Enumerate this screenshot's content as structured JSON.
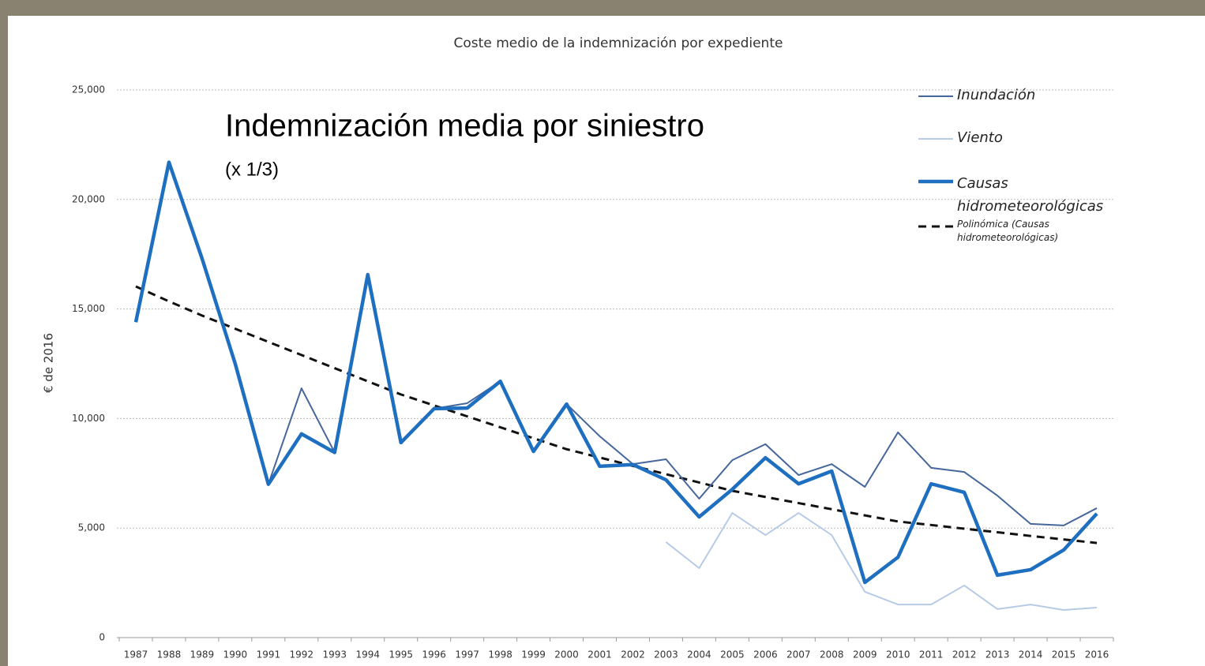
{
  "chart_data": {
    "type": "line",
    "title": "Coste medio de la indemnización por expediente",
    "annotation": "Indemnización media por siniestro",
    "annotation_note": "(x 1/3)",
    "y_label": "€ de 2016",
    "categories": [
      "1987",
      "1988",
      "1989",
      "1990",
      "1991",
      "1992",
      "1993",
      "1994",
      "1995",
      "1996",
      "1997",
      "1998",
      "1999",
      "2000",
      "2001",
      "2002",
      "2003",
      "2004",
      "2005",
      "2006",
      "2007",
      "2008",
      "2009",
      "2010",
      "2011",
      "2012",
      "2013",
      "2014",
      "2015",
      "2016"
    ],
    "series": [
      {
        "name": "Inundación",
        "color": "#45679b",
        "width": 2,
        "dash": false,
        "values": [
          14400,
          21700,
          17300,
          12500,
          7000,
          11380,
          8450,
          16570,
          8900,
          10450,
          10700,
          11700,
          8500,
          10660,
          9190,
          7920,
          8140,
          6340,
          8100,
          8830,
          7420,
          7920,
          6880,
          9370,
          7750,
          7560,
          6480,
          5190,
          5120,
          5910
        ]
      },
      {
        "name": "Viento",
        "color": "#b7cbe6",
        "width": 2,
        "dash": false,
        "values": [
          null,
          null,
          null,
          null,
          null,
          null,
          null,
          null,
          null,
          null,
          null,
          null,
          null,
          null,
          null,
          null,
          4360,
          3170,
          5690,
          4680,
          5690,
          4680,
          2090,
          1510,
          1510,
          2380,
          1300,
          1510,
          1260,
          1370
        ]
      },
      {
        "name": "Causas hidrometeorológicas",
        "color": "#1f6fc1",
        "width": 4.5,
        "dash": false,
        "values": [
          14400,
          21700,
          17300,
          12500,
          7000,
          9300,
          8450,
          16570,
          8900,
          10450,
          10480,
          11700,
          8500,
          10660,
          7820,
          7900,
          7200,
          5510,
          6770,
          8210,
          7020,
          7600,
          2520,
          3670,
          7020,
          6630,
          2850,
          3100,
          4000,
          5660
        ]
      },
      {
        "name": "Polinómica (Causas hidrometeorológicas)",
        "color": "#111111",
        "width": 3,
        "dash": true,
        "values": [
          16030,
          15350,
          14700,
          14100,
          13500,
          12900,
          12300,
          11700,
          11100,
          10600,
          10100,
          9600,
          9100,
          8600,
          8220,
          7840,
          7460,
          7080,
          6700,
          6420,
          6140,
          5860,
          5580,
          5300,
          5140,
          4970,
          4810,
          4640,
          4480,
          4320
        ]
      }
    ],
    "ylim": [
      0,
      25000
    ],
    "yticks": [
      0,
      {
        "value": 5000,
        "label": "5,000"
      },
      {
        "value": 10000,
        "label": "10,000"
      },
      {
        "value": 15000,
        "label": "15,000"
      },
      {
        "value": 20000,
        "label": "20,000"
      },
      {
        "value": 25000,
        "label": "25,000"
      }
    ],
    "grid": true
  }
}
